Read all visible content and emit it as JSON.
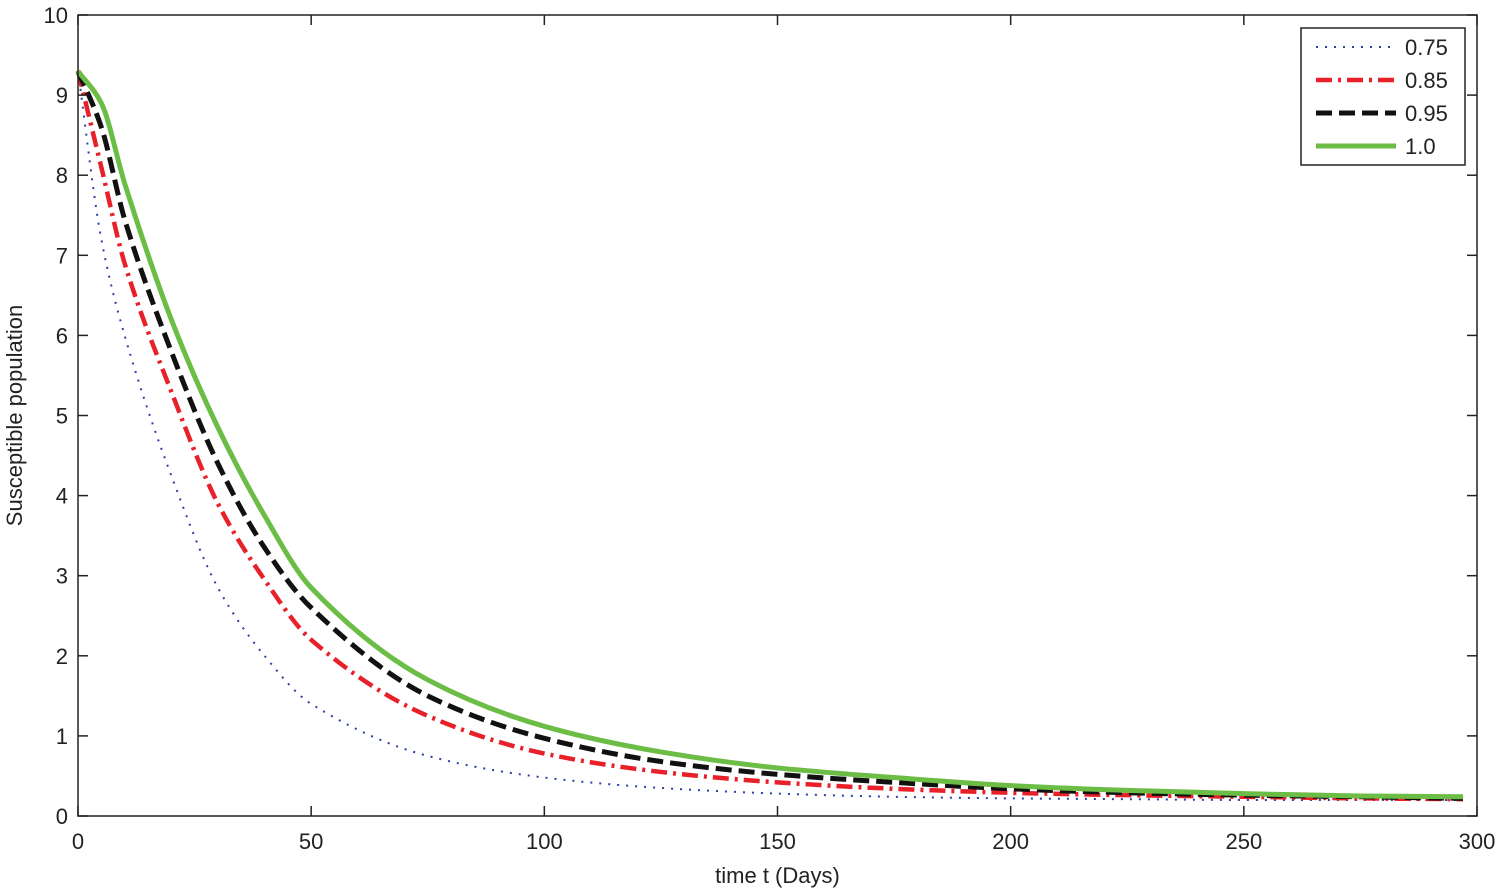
{
  "chart_data": {
    "type": "line",
    "title": "",
    "xlabel": "time t (Days)",
    "ylabel": "Susceptible population",
    "xlim": [
      0,
      300
    ],
    "ylim": [
      0,
      10
    ],
    "xticks": [
      0,
      50,
      100,
      150,
      200,
      250,
      300
    ],
    "yticks": [
      0,
      1,
      2,
      3,
      4,
      5,
      6,
      7,
      8,
      9,
      10
    ],
    "grid": false,
    "legend_position": "top-right",
    "x": [
      0,
      5,
      10,
      20,
      30,
      40,
      50,
      75,
      100,
      125,
      150,
      175,
      200,
      225,
      250,
      275,
      297
    ],
    "series": [
      {
        "name": "0.75",
        "color": "#2b3fa8",
        "style": "dotted",
        "values": [
          9.3,
          7.2,
          6.0,
          4.25,
          2.85,
          2.0,
          1.4,
          0.75,
          0.48,
          0.35,
          0.28,
          0.24,
          0.22,
          0.21,
          0.2,
          0.2,
          0.2
        ]
      },
      {
        "name": "0.85",
        "color": "#e8202a",
        "style": "dashdot",
        "values": [
          9.3,
          8.1,
          6.9,
          5.3,
          3.9,
          2.95,
          2.2,
          1.25,
          0.78,
          0.55,
          0.42,
          0.34,
          0.29,
          0.26,
          0.24,
          0.22,
          0.21
        ]
      },
      {
        "name": "0.95",
        "color": "#111111",
        "style": "dashed",
        "values": [
          9.3,
          8.6,
          7.45,
          5.8,
          4.4,
          3.35,
          2.6,
          1.5,
          0.97,
          0.68,
          0.52,
          0.42,
          0.34,
          0.29,
          0.26,
          0.24,
          0.22
        ]
      },
      {
        "name": "1.0",
        "color": "#6cbd45",
        "style": "solid",
        "values": [
          9.3,
          8.9,
          7.9,
          6.2,
          4.85,
          3.75,
          2.85,
          1.7,
          1.12,
          0.8,
          0.6,
          0.48,
          0.38,
          0.32,
          0.28,
          0.25,
          0.24
        ]
      }
    ]
  }
}
